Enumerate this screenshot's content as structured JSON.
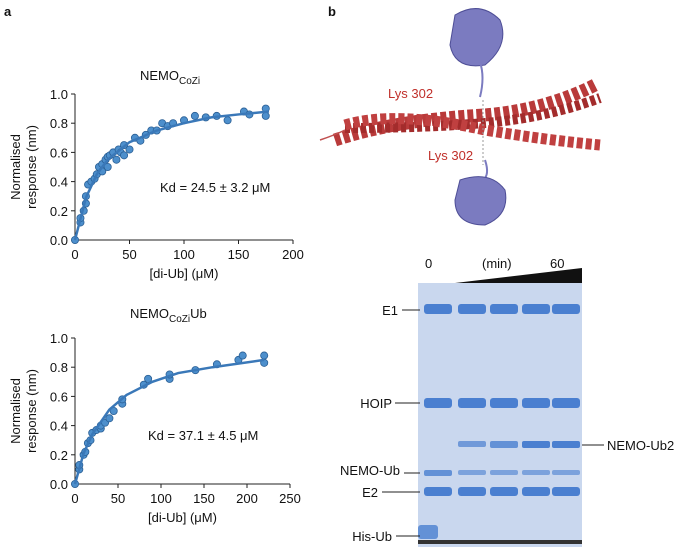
{
  "panels": [
    "a",
    "b"
  ],
  "chart_data": [
    {
      "type": "scatter",
      "title": [
        "NEMO",
        "CoZi"
      ],
      "ylabel": [
        "Normalised",
        "response (nm)"
      ],
      "xlabel": "[di-Ub] (μM)",
      "annotation": "Kd = 24.5 ± 3.2 μM",
      "xlim": [
        0,
        200
      ],
      "xticks": [
        0,
        50,
        100,
        150,
        200
      ],
      "ylim": [
        0,
        1.0
      ],
      "yticks": [
        {
          "value": 0,
          "label": "0.0"
        },
        0.2,
        0.4,
        0.6,
        0.8,
        {
          "value": 1.0,
          "label": "1.0"
        }
      ],
      "series": [
        {
          "style": "markers",
          "color": "#4d8fcc",
          "x": [
            0,
            5,
            5,
            8,
            10,
            10,
            12,
            15,
            18,
            20,
            22,
            25,
            25,
            28,
            30,
            30,
            32,
            35,
            38,
            40,
            42,
            45,
            45,
            50,
            55,
            60,
            65,
            70,
            75,
            80,
            85,
            90,
            100,
            110,
            120,
            130,
            140,
            155,
            160,
            175,
            175
          ],
          "values": [
            0,
            0.12,
            0.15,
            0.2,
            0.25,
            0.3,
            0.38,
            0.4,
            0.42,
            0.45,
            0.5,
            0.47,
            0.52,
            0.55,
            0.57,
            0.5,
            0.58,
            0.6,
            0.55,
            0.62,
            0.6,
            0.58,
            0.65,
            0.62,
            0.7,
            0.68,
            0.72,
            0.75,
            0.75,
            0.8,
            0.78,
            0.8,
            0.82,
            0.85,
            0.84,
            0.85,
            0.82,
            0.88,
            0.86,
            0.9,
            0.85
          ]
        },
        {
          "style": "line",
          "color": "#3a78b8",
          "x": [
            0,
            10,
            20,
            30,
            50,
            75,
            100,
            125,
            150,
            178
          ],
          "values": [
            0,
            0.29,
            0.45,
            0.55,
            0.67,
            0.75,
            0.8,
            0.84,
            0.86,
            0.88
          ]
        }
      ]
    },
    {
      "type": "scatter",
      "title": [
        "NEMO",
        "CoZi",
        "Ub"
      ],
      "ylabel": [
        "Normalised",
        "response (nm)"
      ],
      "xlabel": "[di-Ub] (μM)",
      "annotation": "Kd = 37.1 ± 4.5 μM",
      "xlim": [
        0,
        250
      ],
      "xticks": [
        0,
        50,
        100,
        150,
        200,
        250
      ],
      "ylim": [
        0,
        1.0
      ],
      "yticks": [
        {
          "value": 0,
          "label": "0.0"
        },
        0.2,
        0.4,
        0.6,
        0.8,
        {
          "value": 1.0,
          "label": "1.0"
        }
      ],
      "series": [
        {
          "style": "markers",
          "color": "#4d8fcc",
          "x": [
            0,
            5,
            5,
            10,
            12,
            15,
            18,
            20,
            25,
            30,
            30,
            35,
            40,
            45,
            55,
            55,
            80,
            85,
            110,
            110,
            140,
            165,
            190,
            195,
            220,
            220
          ],
          "values": [
            0,
            0.1,
            0.13,
            0.2,
            0.22,
            0.28,
            0.3,
            0.35,
            0.37,
            0.38,
            0.4,
            0.42,
            0.45,
            0.5,
            0.55,
            0.58,
            0.68,
            0.72,
            0.72,
            0.75,
            0.78,
            0.82,
            0.85,
            0.88,
            0.88,
            0.83
          ]
        },
        {
          "style": "line",
          "color": "#3a78b8",
          "x": [
            0,
            10,
            20,
            40,
            60,
            90,
            120,
            160,
            220
          ],
          "values": [
            0,
            0.21,
            0.34,
            0.51,
            0.61,
            0.7,
            0.76,
            0.8,
            0.85
          ]
        }
      ]
    }
  ],
  "structure": {
    "labels": [
      "Lys 302",
      "Lys 302"
    ]
  },
  "gel": {
    "time_labels": [
      "0",
      "(min)",
      "60"
    ],
    "left_labels": [
      "E1",
      "HOIP",
      "NEMO-Ub",
      "E2",
      "His-Ub"
    ],
    "right_labels": [
      "NEMO-Ub2"
    ]
  }
}
